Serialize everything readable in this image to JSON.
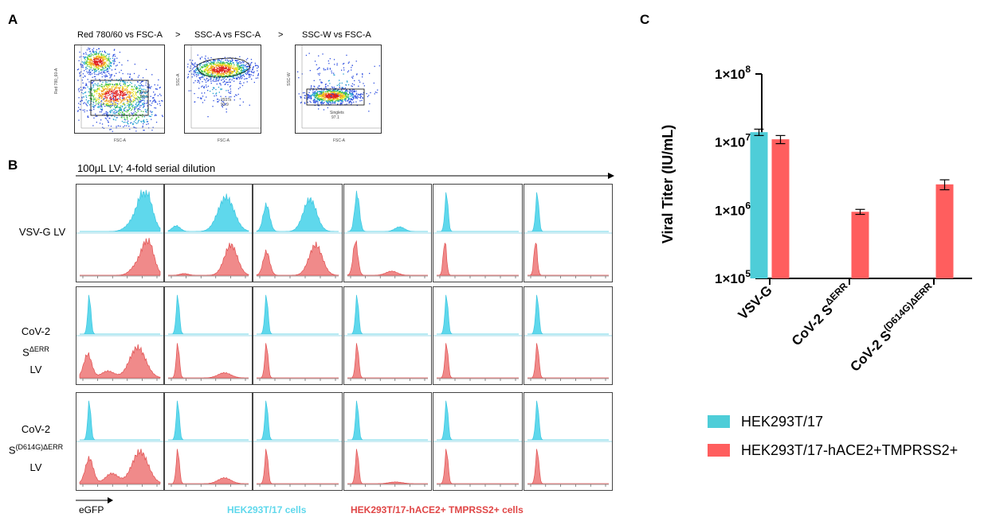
{
  "panels": {
    "a": "A",
    "b": "B",
    "c": "C"
  },
  "gating": {
    "plots": [
      {
        "title": "Red 780/60 vs FSC-A",
        "xlabel": "FSC-A",
        "ylabel": "Red 780_60-A",
        "gate_name": "Live",
        "gate_pct": "50.5",
        "separator": ">"
      },
      {
        "title": "SSC-A vs FSC-A",
        "xlabel": "FSC-A",
        "ylabel": "SSC-A",
        "gate_name": "293Ts",
        "gate_pct": "93.9",
        "separator": ">"
      },
      {
        "title": "SSC-W vs FSC-A",
        "xlabel": "FSC-A",
        "ylabel": "SSC-W",
        "gate_name": "Singlets",
        "gate_pct": "97.1",
        "separator": ""
      }
    ]
  },
  "histograms": {
    "header": "100μL LV; 4-fold serial dilution",
    "x_axis_label": "eGFP",
    "rows": [
      {
        "label_lines": [
          "VSV-G LV"
        ],
        "sup": ""
      },
      {
        "label_lines": [
          "CoV-2",
          "S",
          "LV"
        ],
        "sup": "ΔERR"
      },
      {
        "label_lines": [
          "CoV-2",
          "S",
          "LV"
        ],
        "sup": "(D614G)ΔERR"
      }
    ],
    "legend": {
      "cyan_label": "HEK293T/17 cells",
      "red_label": "HEK293T/17-hACE2+ TMPRSS2+ cells"
    },
    "colors": {
      "cyan": "#5fd8ec",
      "red": "#f08a8a"
    }
  },
  "chart_data": {
    "type": "bar",
    "ylabel": "Viral Titer (IU/mL)",
    "yscale": "log",
    "ylim": [
      100000,
      100000000
    ],
    "yticks": [
      {
        "value": 100000,
        "base": "1×10",
        "exp": "5"
      },
      {
        "value": 1000000,
        "base": "1×10",
        "exp": "6"
      },
      {
        "value": 10000000,
        "base": "1×10",
        "exp": "7"
      },
      {
        "value": 100000000,
        "base": "1×10",
        "exp": "8"
      }
    ],
    "categories": [
      {
        "base": "VSV-G",
        "sup": ""
      },
      {
        "base": "CoV-2 S",
        "sup": "ΔERR"
      },
      {
        "base": "CoV-2 S",
        "sup": "(D614G)ΔERR"
      }
    ],
    "series": [
      {
        "name": "HEK293T/17",
        "color": "#4ecdd8",
        "values": [
          14000000,
          null,
          null
        ],
        "err": [
          1500000,
          null,
          null
        ]
      },
      {
        "name": "HEK293T/17-hACE2+TMPRSS2+",
        "color": "#ff5e5e",
        "values": [
          11000000,
          950000,
          2400000
        ],
        "err": [
          1500000,
          80000,
          400000
        ]
      }
    ],
    "legend_position": "bottom"
  }
}
